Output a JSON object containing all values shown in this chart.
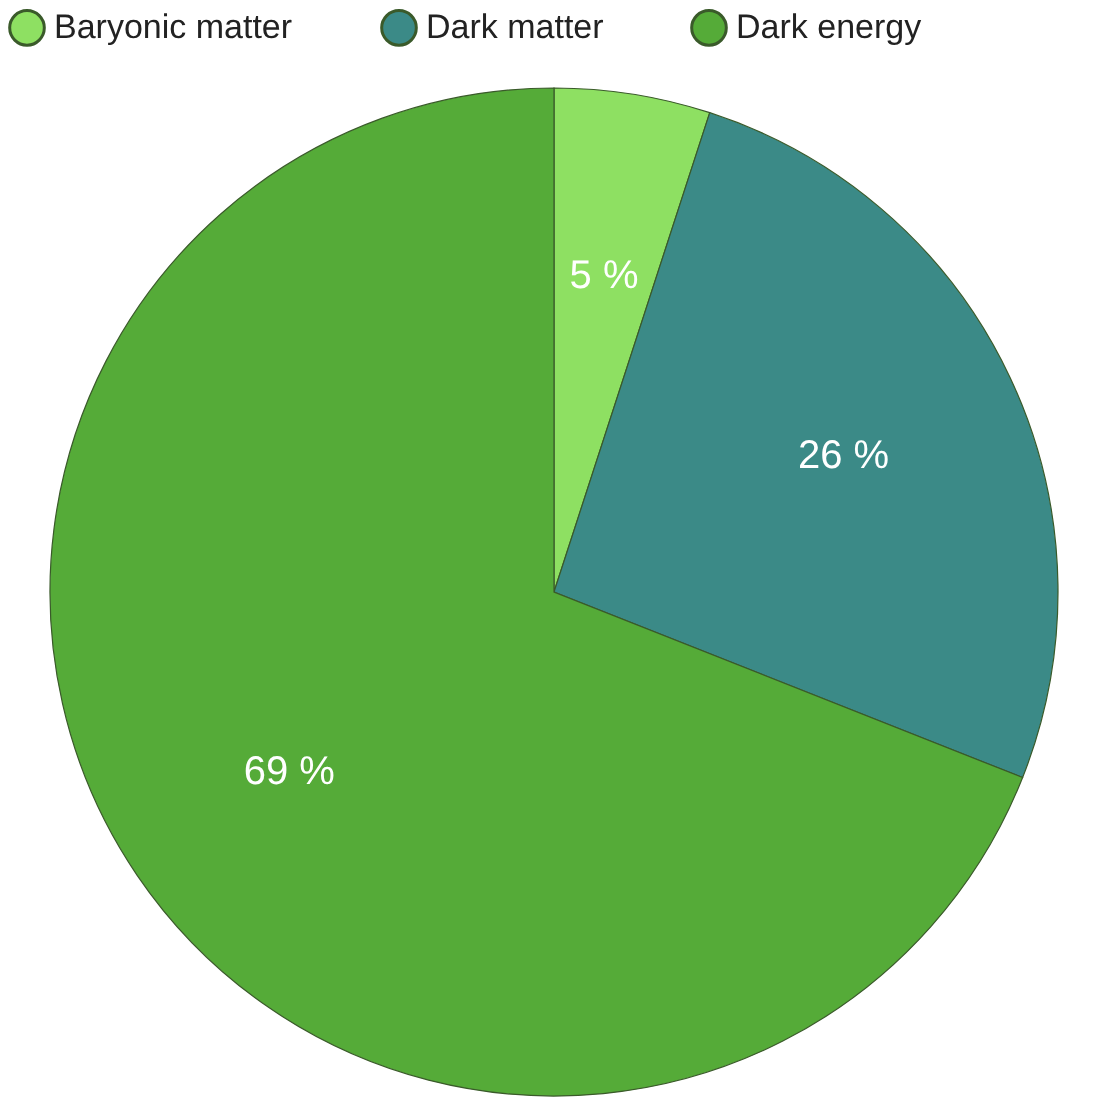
{
  "chart_data": {
    "type": "pie",
    "categories": [
      "Baryonic matter",
      "Dark matter",
      "Dark energy"
    ],
    "values": [
      5,
      26,
      69
    ],
    "colors": [
      "#8ee062",
      "#3b8a87",
      "#55ab38"
    ],
    "value_labels": [
      "5 %",
      "26 %",
      "69 %"
    ],
    "legend": "top"
  }
}
